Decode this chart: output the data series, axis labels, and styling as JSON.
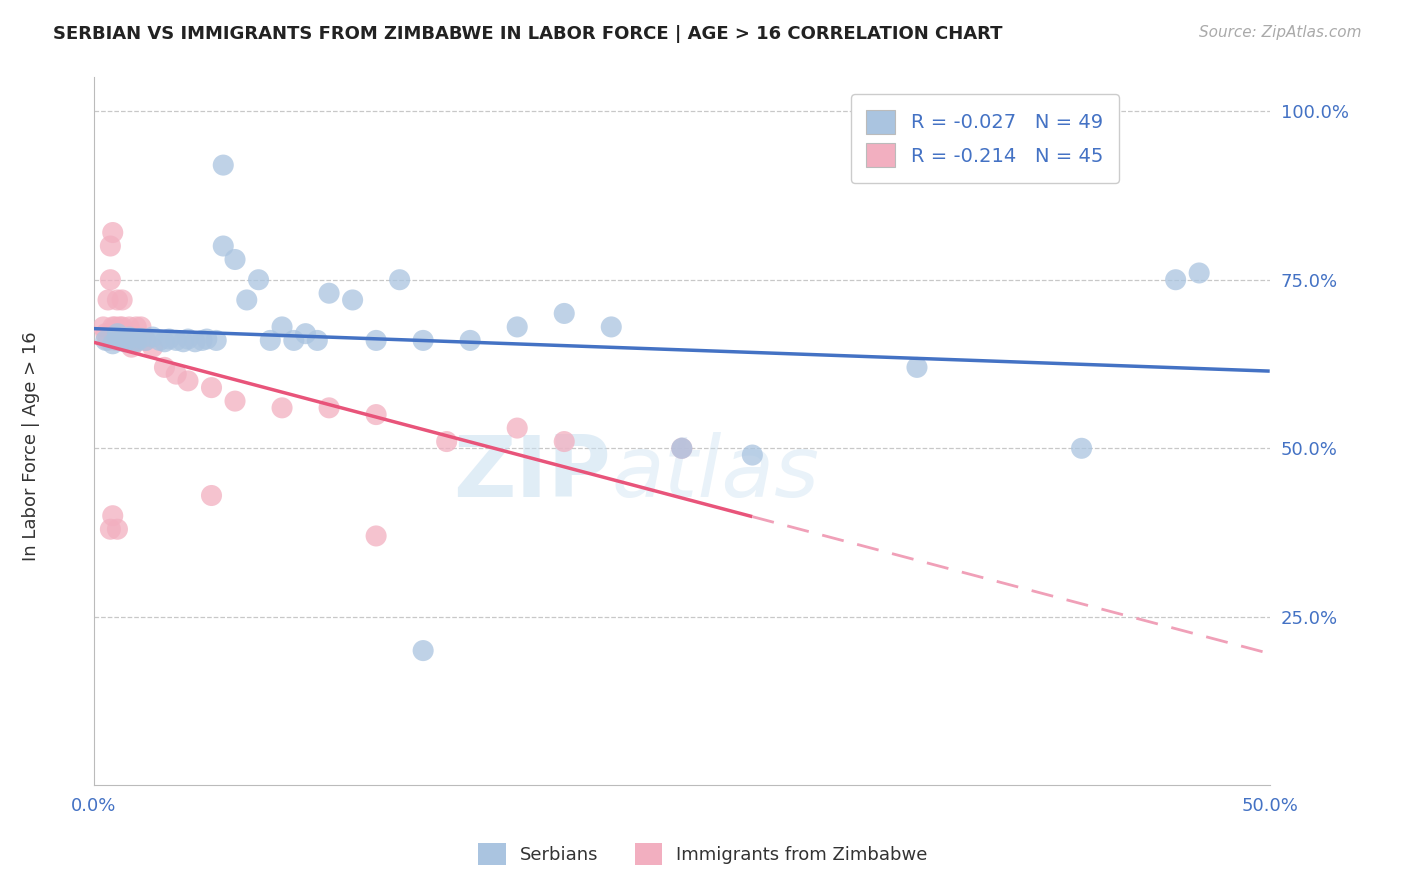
{
  "title": "SERBIAN VS IMMIGRANTS FROM ZIMBABWE IN LABOR FORCE | AGE > 16 CORRELATION CHART",
  "source": "Source: ZipAtlas.com",
  "ylabel": "In Labor Force | Age > 16",
  "watermark_text": "ZIP",
  "watermark_text2": "atlas",
  "legend_serbian_r": "R = -0.027",
  "legend_serbian_n": "N = 49",
  "legend_zimbabwe_r": "R = -0.214",
  "legend_zimbabwe_n": "N = 45",
  "xlim": [
    0.0,
    0.5
  ],
  "ylim": [
    0.0,
    1.05
  ],
  "yticks": [
    0.25,
    0.5,
    0.75,
    1.0
  ],
  "ytick_labels": [
    "25.0%",
    "50.0%",
    "75.0%",
    "100.0%"
  ],
  "xtick_labels": [
    "0.0%",
    "50.0%"
  ],
  "xticks": [
    0.0,
    0.5
  ],
  "color_serbian": "#aac4e0",
  "color_zimbabwe": "#f2afc0",
  "line_color_serbian": "#4472c4",
  "line_color_zimbabwe": "#e8547a",
  "line_color_dashed": "#f0a0b8",
  "serbian_x": [
    0.005,
    0.008,
    0.01,
    0.01,
    0.012,
    0.013,
    0.015,
    0.015,
    0.018,
    0.018,
    0.02,
    0.022,
    0.025,
    0.028,
    0.03,
    0.032,
    0.035,
    0.038,
    0.04,
    0.043,
    0.046,
    0.048,
    0.052,
    0.055,
    0.06,
    0.065,
    0.07,
    0.075,
    0.08,
    0.085,
    0.09,
    0.095,
    0.1,
    0.11,
    0.12,
    0.13,
    0.14,
    0.16,
    0.18,
    0.2,
    0.22,
    0.25,
    0.28,
    0.35,
    0.42,
    0.46,
    0.47,
    0.055,
    0.14
  ],
  "serbian_y": [
    0.66,
    0.655,
    0.665,
    0.67,
    0.66,
    0.658,
    0.665,
    0.662,
    0.66,
    0.658,
    0.663,
    0.66,
    0.665,
    0.66,
    0.658,
    0.662,
    0.66,
    0.658,
    0.662,
    0.658,
    0.66,
    0.662,
    0.66,
    0.8,
    0.78,
    0.72,
    0.75,
    0.66,
    0.68,
    0.66,
    0.67,
    0.66,
    0.73,
    0.72,
    0.66,
    0.75,
    0.66,
    0.66,
    0.68,
    0.7,
    0.68,
    0.5,
    0.49,
    0.62,
    0.5,
    0.75,
    0.76,
    0.92,
    0.2
  ],
  "zimbabwe_x": [
    0.004,
    0.005,
    0.006,
    0.006,
    0.007,
    0.007,
    0.008,
    0.008,
    0.008,
    0.009,
    0.009,
    0.01,
    0.01,
    0.011,
    0.011,
    0.012,
    0.012,
    0.013,
    0.013,
    0.014,
    0.015,
    0.015,
    0.016,
    0.018,
    0.018,
    0.02,
    0.022,
    0.025,
    0.03,
    0.035,
    0.04,
    0.05,
    0.06,
    0.08,
    0.1,
    0.12,
    0.15,
    0.18,
    0.2,
    0.25,
    0.007,
    0.008,
    0.01,
    0.05,
    0.12
  ],
  "zimbabwe_y": [
    0.68,
    0.67,
    0.72,
    0.66,
    0.8,
    0.75,
    0.68,
    0.67,
    0.82,
    0.66,
    0.68,
    0.72,
    0.66,
    0.68,
    0.66,
    0.72,
    0.68,
    0.66,
    0.67,
    0.66,
    0.68,
    0.66,
    0.65,
    0.68,
    0.66,
    0.68,
    0.66,
    0.65,
    0.62,
    0.61,
    0.6,
    0.59,
    0.57,
    0.56,
    0.56,
    0.55,
    0.51,
    0.53,
    0.51,
    0.5,
    0.38,
    0.4,
    0.38,
    0.43,
    0.37
  ]
}
